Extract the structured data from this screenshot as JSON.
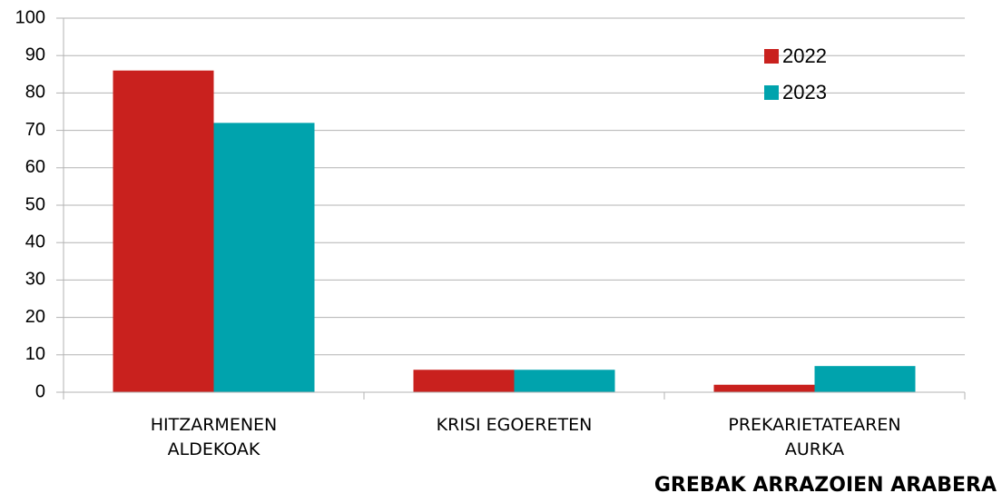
{
  "chart_data": {
    "type": "bar",
    "title": "GREBAK ARRAZOIEN ARABERA",
    "categories": [
      "HITZARMENEN ALDEKOAK",
      "KRISI EGOERETEN",
      "PREKARIETATEAREN AURKA"
    ],
    "series": [
      {
        "name": "2022",
        "color": "#c9211e",
        "values": [
          86,
          6,
          2
        ]
      },
      {
        "name": "2023",
        "color": "#00a3ad",
        "values": [
          72,
          6,
          7
        ]
      }
    ],
    "ylim": [
      0,
      100
    ],
    "yticks": [
      0,
      10,
      20,
      30,
      40,
      50,
      60,
      70,
      80,
      90,
      100
    ],
    "grid": true,
    "legend": "top-right"
  }
}
